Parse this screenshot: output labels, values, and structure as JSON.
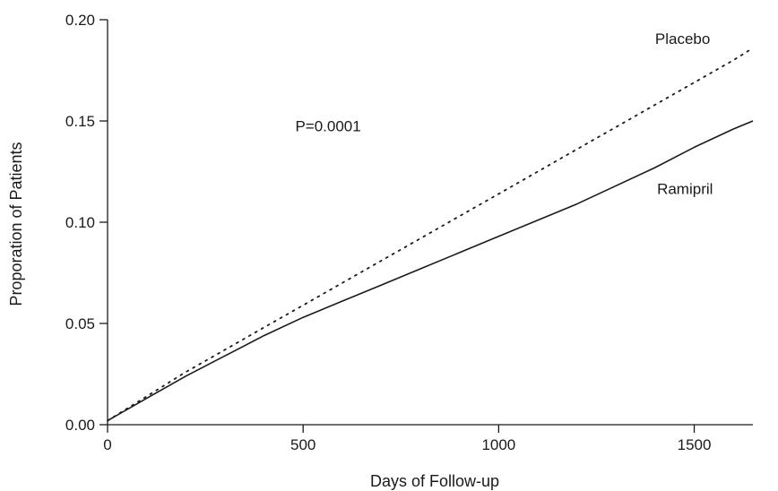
{
  "chart_data": {
    "type": "line",
    "title": "",
    "xlabel": "Days of Follow-up",
    "ylabel": "Proporation of Patients",
    "xlim": [
      0,
      1650
    ],
    "ylim": [
      0,
      0.2
    ],
    "xticks": [
      0,
      500,
      1000,
      1500
    ],
    "yticks": [
      0.0,
      0.05,
      0.1,
      0.15,
      0.2
    ],
    "xtick_labels": [
      "0",
      "500",
      "1000",
      "1500"
    ],
    "ytick_labels": [
      "0.00",
      "0.05",
      "0.10",
      "0.15",
      "0.20"
    ],
    "grid": false,
    "legend": "none",
    "series": [
      {
        "name": "Placebo",
        "style": "dotted",
        "color": "#1a1a1a",
        "x": [
          0,
          100,
          200,
          300,
          400,
          500,
          600,
          700,
          800,
          900,
          1000,
          1100,
          1200,
          1300,
          1400,
          1500,
          1600,
          1650
        ],
        "y": [
          0.002,
          0.014,
          0.026,
          0.037,
          0.048,
          0.059,
          0.07,
          0.081,
          0.092,
          0.103,
          0.114,
          0.125,
          0.136,
          0.147,
          0.158,
          0.169,
          0.18,
          0.186
        ]
      },
      {
        "name": "Ramipril",
        "style": "solid",
        "color": "#1a1a1a",
        "x": [
          0,
          100,
          200,
          300,
          400,
          500,
          600,
          700,
          800,
          900,
          1000,
          1100,
          1200,
          1300,
          1400,
          1500,
          1600,
          1650
        ],
        "y": [
          0.002,
          0.013,
          0.024,
          0.034,
          0.044,
          0.053,
          0.061,
          0.069,
          0.077,
          0.085,
          0.093,
          0.101,
          0.109,
          0.118,
          0.127,
          0.137,
          0.146,
          0.15
        ]
      }
    ],
    "annotations": [
      {
        "text": "Placebo",
        "x": 1400,
        "y": 0.188
      },
      {
        "text": "Ramipril",
        "x": 1405,
        "y": 0.114
      },
      {
        "text": "P=0.0001",
        "x": 480,
        "y": 0.145
      }
    ]
  }
}
